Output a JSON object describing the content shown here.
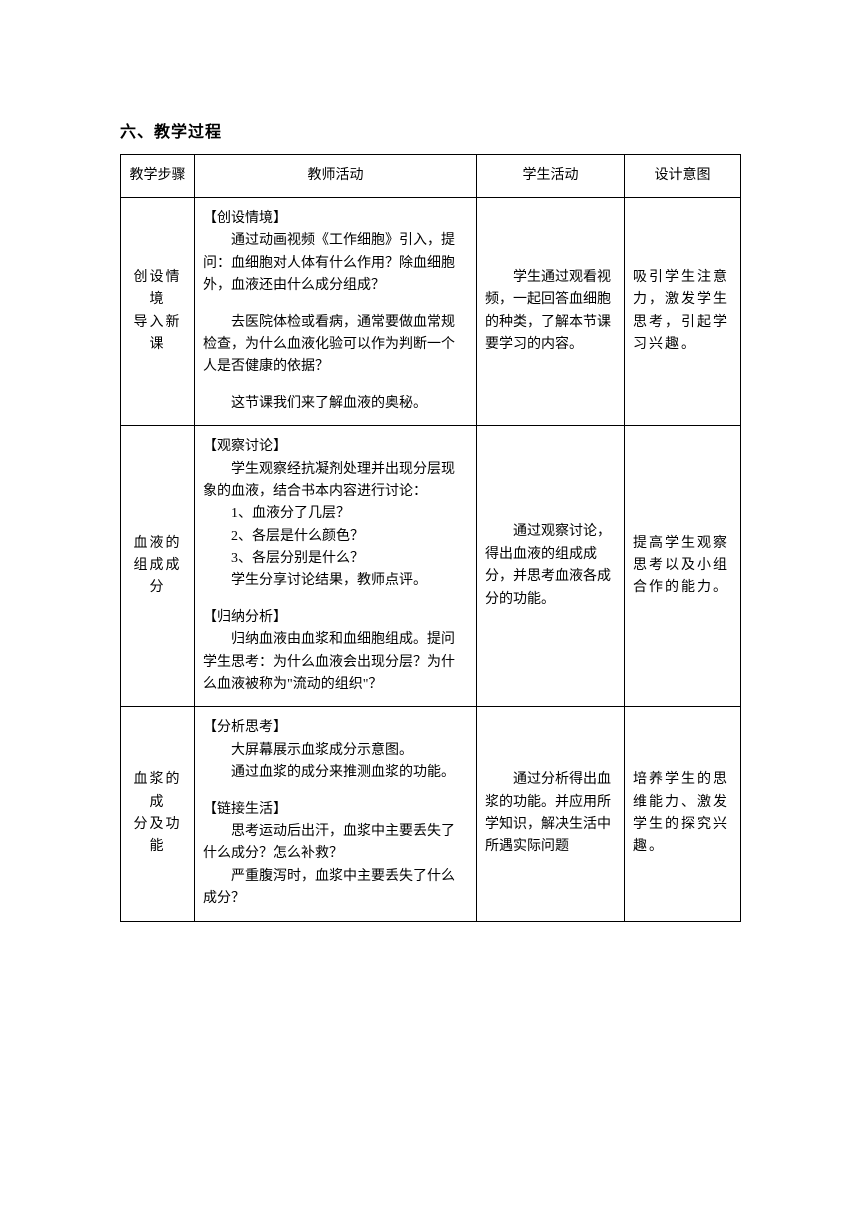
{
  "heading": "六、教学过程",
  "headers": {
    "step": "教学步骤",
    "teacher": "教师活动",
    "student": "学生活动",
    "intent": "设计意图"
  },
  "rows": [
    {
      "step_line1": "创设情境",
      "step_line2": "导入新课",
      "teacher": {
        "label1": "【创设情境】",
        "p1": "通过动画视频《工作细胞》引入，提问：血细胞对人体有什么作用？除血细胞外，血液还由什么成分组成？",
        "p2": "去医院体检或看病，通常要做血常规检查，为什么血液化验可以作为判断一个人是否健康的依据？",
        "p3": "这节课我们来了解血液的奥秘。"
      },
      "student": "学生通过观看视频，一起回答血细胞的种类，了解本节课要学习的内容。",
      "intent": "吸引学生注意力，激发学生思考，引起学习兴趣。"
    },
    {
      "step_line1": "血液的",
      "step_line2": "组成成分",
      "teacher": {
        "label1": "【观察讨论】",
        "p1": "学生观察经抗凝剂处理并出现分层现象的血液，结合书本内容进行讨论：",
        "li1": "1、血液分了几层？",
        "li2": "2、各层是什么颜色？",
        "li3": "3、各层分别是什么？",
        "p2": "学生分享讨论结果，教师点评。",
        "label2": "【归纳分析】",
        "p3": "归纳血液由血浆和血细胞组成。提问学生思考：为什么血液会出现分层？为什么血液被称为\"流动的组织\"？"
      },
      "student": "通过观察讨论，得出血液的组成成分，并思考血液各成分的功能。",
      "intent": "提高学生观察思考以及小组合作的能力。"
    },
    {
      "step_line1": "血浆的成",
      "step_line2": "分及功能",
      "teacher": {
        "label1": "【分析思考】",
        "p1": "大屏幕展示血浆成分示意图。",
        "p2": "通过血浆的成分来推测血浆的功能。",
        "label2": "【链接生活】",
        "p3": "思考运动后出汗，血浆中主要丢失了什么成分？怎么补救？",
        "p4": "严重腹泻时，血浆中主要丢失了什么成分？"
      },
      "student": "通过分析得出血浆的功能。并应用所学知识，解决生活中所遇实际问题",
      "intent": "培养学生的思维能力、激发学生的探究兴趣。"
    }
  ]
}
